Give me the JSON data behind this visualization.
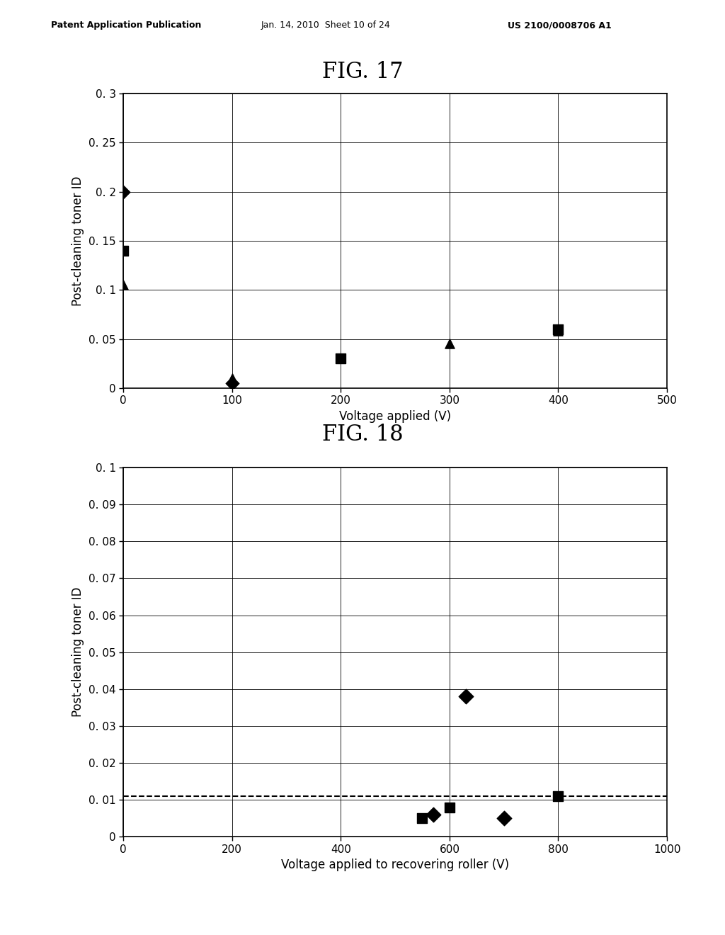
{
  "header_left": "Patent Application Publication",
  "header_mid": "Jan. 14, 2010  Sheet 10 of 24",
  "header_right": "US 2100/0008706 A1",
  "fig17": {
    "title": "FIG. 17",
    "xlabel": "Voltage applied (V)",
    "ylabel": "Post-cleaning toner ID",
    "xlim": [
      0,
      500
    ],
    "ylim": [
      0,
      0.3
    ],
    "xticks": [
      0,
      100,
      200,
      300,
      400,
      500
    ],
    "ytick_vals": [
      0,
      0.05,
      0.1,
      0.15,
      0.2,
      0.25,
      0.3
    ],
    "ytick_labels": [
      "0",
      "0. 05",
      "0. 1",
      "0. 15",
      "0. 2",
      "0. 25",
      "0. 3"
    ],
    "xtick_labels": [
      "0",
      "100",
      "200",
      "300",
      "400",
      "500"
    ],
    "series_diamond": {
      "x": [
        0,
        100
      ],
      "y": [
        0.2,
        0.005
      ],
      "marker": "D",
      "color": "black",
      "size": 90
    },
    "series_square": {
      "x": [
        0,
        200,
        400
      ],
      "y": [
        0.14,
        0.03,
        0.06
      ],
      "marker": "s",
      "color": "black",
      "size": 90
    },
    "series_triangle": {
      "x": [
        0,
        100,
        300,
        400
      ],
      "y": [
        0.105,
        0.01,
        0.045,
        0.058
      ],
      "marker": "^",
      "color": "black",
      "size": 90
    }
  },
  "fig18": {
    "title": "FIG. 18",
    "xlabel": "Voltage applied to recovering roller (V)",
    "ylabel": "Post-cleaning toner ID",
    "xlim": [
      0,
      1000
    ],
    "ylim": [
      0,
      0.1
    ],
    "xticks": [
      0,
      200,
      400,
      600,
      800,
      1000
    ],
    "xtick_labels": [
      "0",
      "200",
      "400",
      "600",
      "800",
      "1000"
    ],
    "ytick_vals": [
      0,
      0.01,
      0.02,
      0.03,
      0.04,
      0.05,
      0.06,
      0.07,
      0.08,
      0.09,
      0.1
    ],
    "ytick_labels": [
      "0",
      "0. 01",
      "0. 02",
      "0. 03",
      "0. 04",
      "0. 05",
      "0. 06",
      "0. 07",
      "0. 08",
      "0. 09",
      "0. 1"
    ],
    "dashed_line_y": 0.011,
    "series_diamond": {
      "x": [
        570,
        630,
        700
      ],
      "y": [
        0.006,
        0.038,
        0.005
      ],
      "marker": "D",
      "color": "black",
      "size": 110
    },
    "series_square": {
      "x": [
        550,
        600,
        800
      ],
      "y": [
        0.005,
        0.008,
        0.011
      ],
      "marker": "s",
      "color": "black",
      "size": 110
    }
  },
  "bg_color": "#f0f0f0",
  "text_color": "#000000",
  "header_fontsize": 9,
  "title_fontsize": 22,
  "tick_fontsize": 11,
  "label_fontsize": 12
}
